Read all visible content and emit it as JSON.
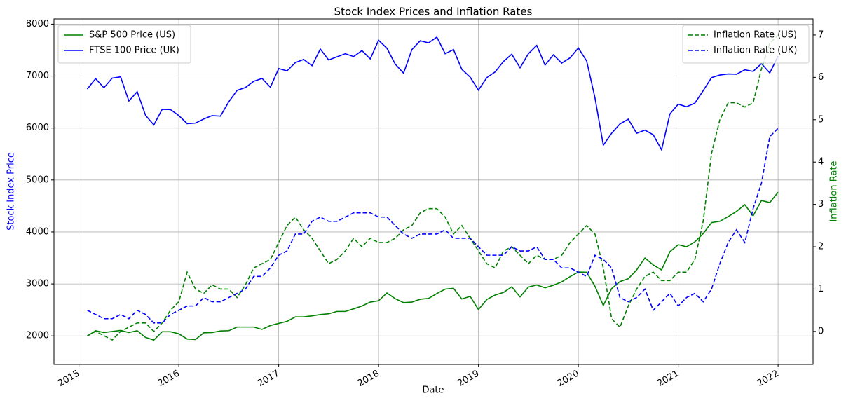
{
  "chart_data": {
    "type": "line",
    "title": "Stock Index Prices and Inflation Rates",
    "xlabel": "Date",
    "ylabel": "Stock Index Price",
    "y2label": "Inflation Rate",
    "ylabel_color": "#0000ff",
    "y2label_color": "#008000",
    "x": [
      "2015-01",
      "2015-02",
      "2015-03",
      "2015-04",
      "2015-05",
      "2015-06",
      "2015-07",
      "2015-08",
      "2015-09",
      "2015-10",
      "2015-11",
      "2015-12",
      "2016-01",
      "2016-02",
      "2016-03",
      "2016-04",
      "2016-05",
      "2016-06",
      "2016-07",
      "2016-08",
      "2016-09",
      "2016-10",
      "2016-11",
      "2016-12",
      "2017-01",
      "2017-02",
      "2017-03",
      "2017-04",
      "2017-05",
      "2017-06",
      "2017-07",
      "2017-08",
      "2017-09",
      "2017-10",
      "2017-11",
      "2017-12",
      "2018-01",
      "2018-02",
      "2018-03",
      "2018-04",
      "2018-05",
      "2018-06",
      "2018-07",
      "2018-08",
      "2018-09",
      "2018-10",
      "2018-11",
      "2018-12",
      "2019-01",
      "2019-02",
      "2019-03",
      "2019-04",
      "2019-05",
      "2019-06",
      "2019-07",
      "2019-08",
      "2019-09",
      "2019-10",
      "2019-11",
      "2019-12",
      "2020-01",
      "2020-02",
      "2020-03",
      "2020-04",
      "2020-05",
      "2020-06",
      "2020-07",
      "2020-08",
      "2020-09",
      "2020-10",
      "2020-11",
      "2020-12",
      "2021-01",
      "2021-02",
      "2021-03",
      "2021-04",
      "2021-05",
      "2021-06",
      "2021-07",
      "2021-08",
      "2021-09",
      "2021-10",
      "2021-11",
      "2021-12"
    ],
    "xlim": [
      2014.75,
      2022.35
    ],
    "xticks": [
      2015,
      2016,
      2017,
      2018,
      2019,
      2020,
      2021,
      2022
    ],
    "ylim": [
      1450,
      8100
    ],
    "yticks": [
      2000,
      3000,
      4000,
      5000,
      6000,
      7000,
      8000
    ],
    "y2lim": [
      -0.78,
      7.38
    ],
    "y2ticks": [
      0,
      1,
      2,
      3,
      4,
      5,
      6,
      7
    ],
    "grid": true,
    "legend_loc": "upper left",
    "y2_legend_loc": "upper right",
    "series": [
      {
        "name": "S&P 500 Price (US)",
        "color": "#008000",
        "axis": "y",
        "dashed": false,
        "values": [
          1995,
          2100,
          2065,
          2085,
          2105,
          2065,
          2100,
          1970,
          1920,
          2080,
          2080,
          2040,
          1940,
          1930,
          2060,
          2065,
          2095,
          2100,
          2170,
          2170,
          2170,
          2125,
          2200,
          2240,
          2280,
          2365,
          2365,
          2385,
          2410,
          2425,
          2470,
          2470,
          2520,
          2575,
          2650,
          2675,
          2825,
          2715,
          2640,
          2650,
          2705,
          2720,
          2815,
          2900,
          2915,
          2710,
          2760,
          2505,
          2700,
          2785,
          2835,
          2945,
          2750,
          2940,
          2980,
          2925,
          2975,
          3040,
          3140,
          3230,
          3225,
          2955,
          2585,
          2910,
          3045,
          3100,
          3270,
          3500,
          3365,
          3270,
          3620,
          3755,
          3715,
          3810,
          3970,
          4180,
          4205,
          4295,
          4395,
          4525,
          4310,
          4605,
          4565,
          4765
        ]
      },
      {
        "name": "FTSE 100 Price (UK)",
        "color": "#0000ff",
        "axis": "y",
        "dashed": false,
        "values": [
          6750,
          6950,
          6775,
          6960,
          6985,
          6520,
          6700,
          6245,
          6060,
          6360,
          6355,
          6240,
          6085,
          6095,
          6175,
          6240,
          6230,
          6505,
          6725,
          6780,
          6900,
          6955,
          6785,
          7145,
          7100,
          7260,
          7320,
          7200,
          7520,
          7310,
          7370,
          7430,
          7375,
          7490,
          7330,
          7690,
          7535,
          7230,
          7055,
          7510,
          7680,
          7640,
          7750,
          7430,
          7510,
          7130,
          6980,
          6730,
          6970,
          7080,
          7280,
          7420,
          7160,
          7430,
          7590,
          7210,
          7410,
          7250,
          7350,
          7540,
          7290,
          6580,
          5670,
          5900,
          6080,
          6170,
          5900,
          5960,
          5870,
          5580,
          6270,
          6460,
          6410,
          6480,
          6720,
          6970,
          7020,
          7040,
          7035,
          7120,
          7090,
          7240,
          7060,
          7385
        ]
      },
      {
        "name": "Inflation Rate (US)",
        "color": "#008000",
        "axis": "y2",
        "dashed": true,
        "values": [
          -0.1,
          0.0,
          -0.1,
          -0.2,
          0.0,
          0.1,
          0.2,
          0.2,
          0.0,
          0.2,
          0.5,
          0.7,
          1.4,
          1.0,
          0.9,
          1.1,
          1.0,
          1.0,
          0.8,
          1.1,
          1.5,
          1.6,
          1.7,
          2.1,
          2.5,
          2.7,
          2.4,
          2.2,
          1.9,
          1.6,
          1.7,
          1.9,
          2.2,
          2.0,
          2.2,
          2.1,
          2.1,
          2.2,
          2.4,
          2.5,
          2.8,
          2.9,
          2.9,
          2.7,
          2.3,
          2.5,
          2.2,
          1.9,
          1.6,
          1.5,
          1.9,
          2.0,
          1.8,
          1.6,
          1.8,
          1.7,
          1.7,
          1.8,
          2.1,
          2.3,
          2.5,
          2.3,
          1.5,
          0.3,
          0.1,
          0.6,
          1.0,
          1.3,
          1.4,
          1.2,
          1.2,
          1.4,
          1.4,
          1.7,
          2.6,
          4.2,
          5.0,
          5.4,
          5.4,
          5.3,
          5.4,
          6.2,
          6.8,
          7.0
        ]
      },
      {
        "name": "Inflation Rate (UK)",
        "color": "#0000ff",
        "axis": "y2",
        "dashed": true,
        "values": [
          0.5,
          0.4,
          0.3,
          0.3,
          0.4,
          0.3,
          0.5,
          0.4,
          0.2,
          0.2,
          0.4,
          0.5,
          0.6,
          0.6,
          0.8,
          0.7,
          0.7,
          0.8,
          0.9,
          1.0,
          1.3,
          1.3,
          1.5,
          1.8,
          1.9,
          2.3,
          2.3,
          2.6,
          2.7,
          2.6,
          2.6,
          2.7,
          2.8,
          2.8,
          2.8,
          2.7,
          2.7,
          2.5,
          2.3,
          2.2,
          2.3,
          2.3,
          2.3,
          2.4,
          2.2,
          2.2,
          2.2,
          2.0,
          1.8,
          1.8,
          1.8,
          2.0,
          1.9,
          1.9,
          2.0,
          1.7,
          1.7,
          1.5,
          1.5,
          1.4,
          1.3,
          1.8,
          1.7,
          1.5,
          0.8,
          0.7,
          0.8,
          1.0,
          0.5,
          0.7,
          0.9,
          0.6,
          0.8,
          0.9,
          0.7,
          1.0,
          1.6,
          2.1,
          2.4,
          2.1,
          2.9,
          3.5,
          4.6,
          4.8
        ]
      }
    ]
  }
}
